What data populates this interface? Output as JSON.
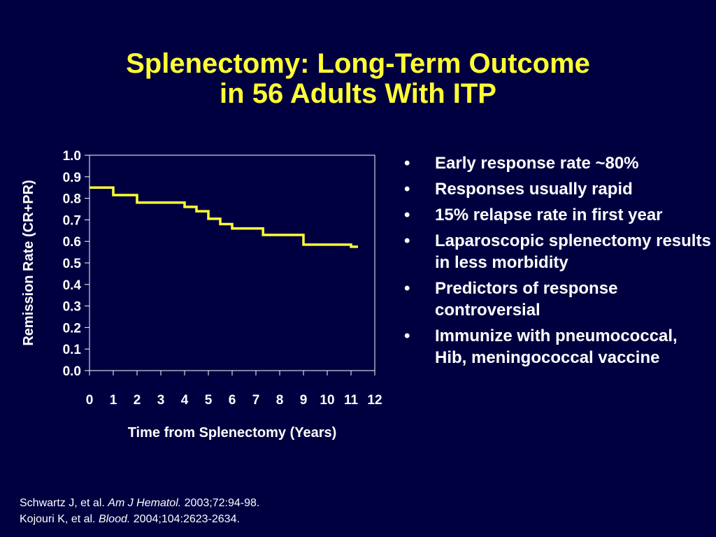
{
  "title": {
    "line1": "Splenectomy: Long-Term Outcome",
    "line2": "in 56 Adults With ITP"
  },
  "colors": {
    "background": "#000040",
    "title": "#ffff33",
    "series_line": "#ffff33",
    "text": "#ffffff"
  },
  "chart_data": {
    "type": "line",
    "title": "",
    "xlabel": "Time from Splenectomy (Years)",
    "ylabel": "Remission Rate (CR+PR)",
    "xlim": [
      0,
      12
    ],
    "ylim": [
      0.0,
      1.0
    ],
    "x_ticks": [
      "0",
      "1",
      "2",
      "3",
      "4",
      "5",
      "6",
      "7",
      "8",
      "9",
      "10",
      "11",
      "12"
    ],
    "y_ticks": [
      "0.0",
      "0.1",
      "0.2",
      "0.3",
      "0.4",
      "0.5",
      "0.6",
      "0.7",
      "0.8",
      "0.9",
      "1.0"
    ],
    "grid": false,
    "step": true,
    "series": [
      {
        "x": [
          0,
          1,
          2,
          4,
          4.5,
          5.0,
          5.5,
          6.0,
          7.3,
          9.0,
          11.0
        ],
        "y": [
          0.85,
          0.815,
          0.78,
          0.76,
          0.74,
          0.705,
          0.68,
          0.66,
          0.63,
          0.585,
          0.575
        ]
      }
    ]
  },
  "bullets": [
    "Early response rate ~80%",
    "Responses usually rapid",
    "15% relapse rate in first year",
    "Laparoscopic splenectomy results in less morbidity",
    "Predictors of response controversial",
    "Immunize with pneumococcal, Hib, meningococcal vaccine"
  ],
  "references": [
    {
      "authors": "Schwartz J, et al.",
      "journal": "Am J Hematol.",
      "citation": "2003;72:94-98."
    },
    {
      "authors": "Kojouri K, et al.",
      "journal": "Blood.",
      "citation": "2004;104:2623-2634."
    }
  ]
}
